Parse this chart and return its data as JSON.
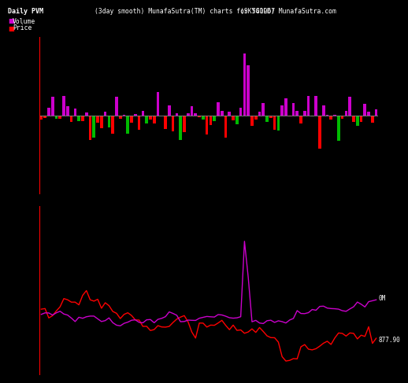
{
  "title_left": "Daily PVM",
  "subtitle_center": "(3day smooth) MunafaSutra(TM) charts for 541967",
  "subtitle_right": "(SKYGOLD) MunafaSutra.com",
  "legend_items": [
    "Volume",
    "Price"
  ],
  "legend_colors": [
    "#cc00cc",
    "#ff0000"
  ],
  "background": "#000000",
  "fg": "#ffffff",
  "label_vol_end": "0M",
  "label_price_end": "877.90",
  "zero_line_color": "#888888",
  "bar_up_color": "#cc00cc",
  "bar_down_color_main": "#ff0000",
  "bar_down_color_alt": "#00bb00",
  "n": 90
}
